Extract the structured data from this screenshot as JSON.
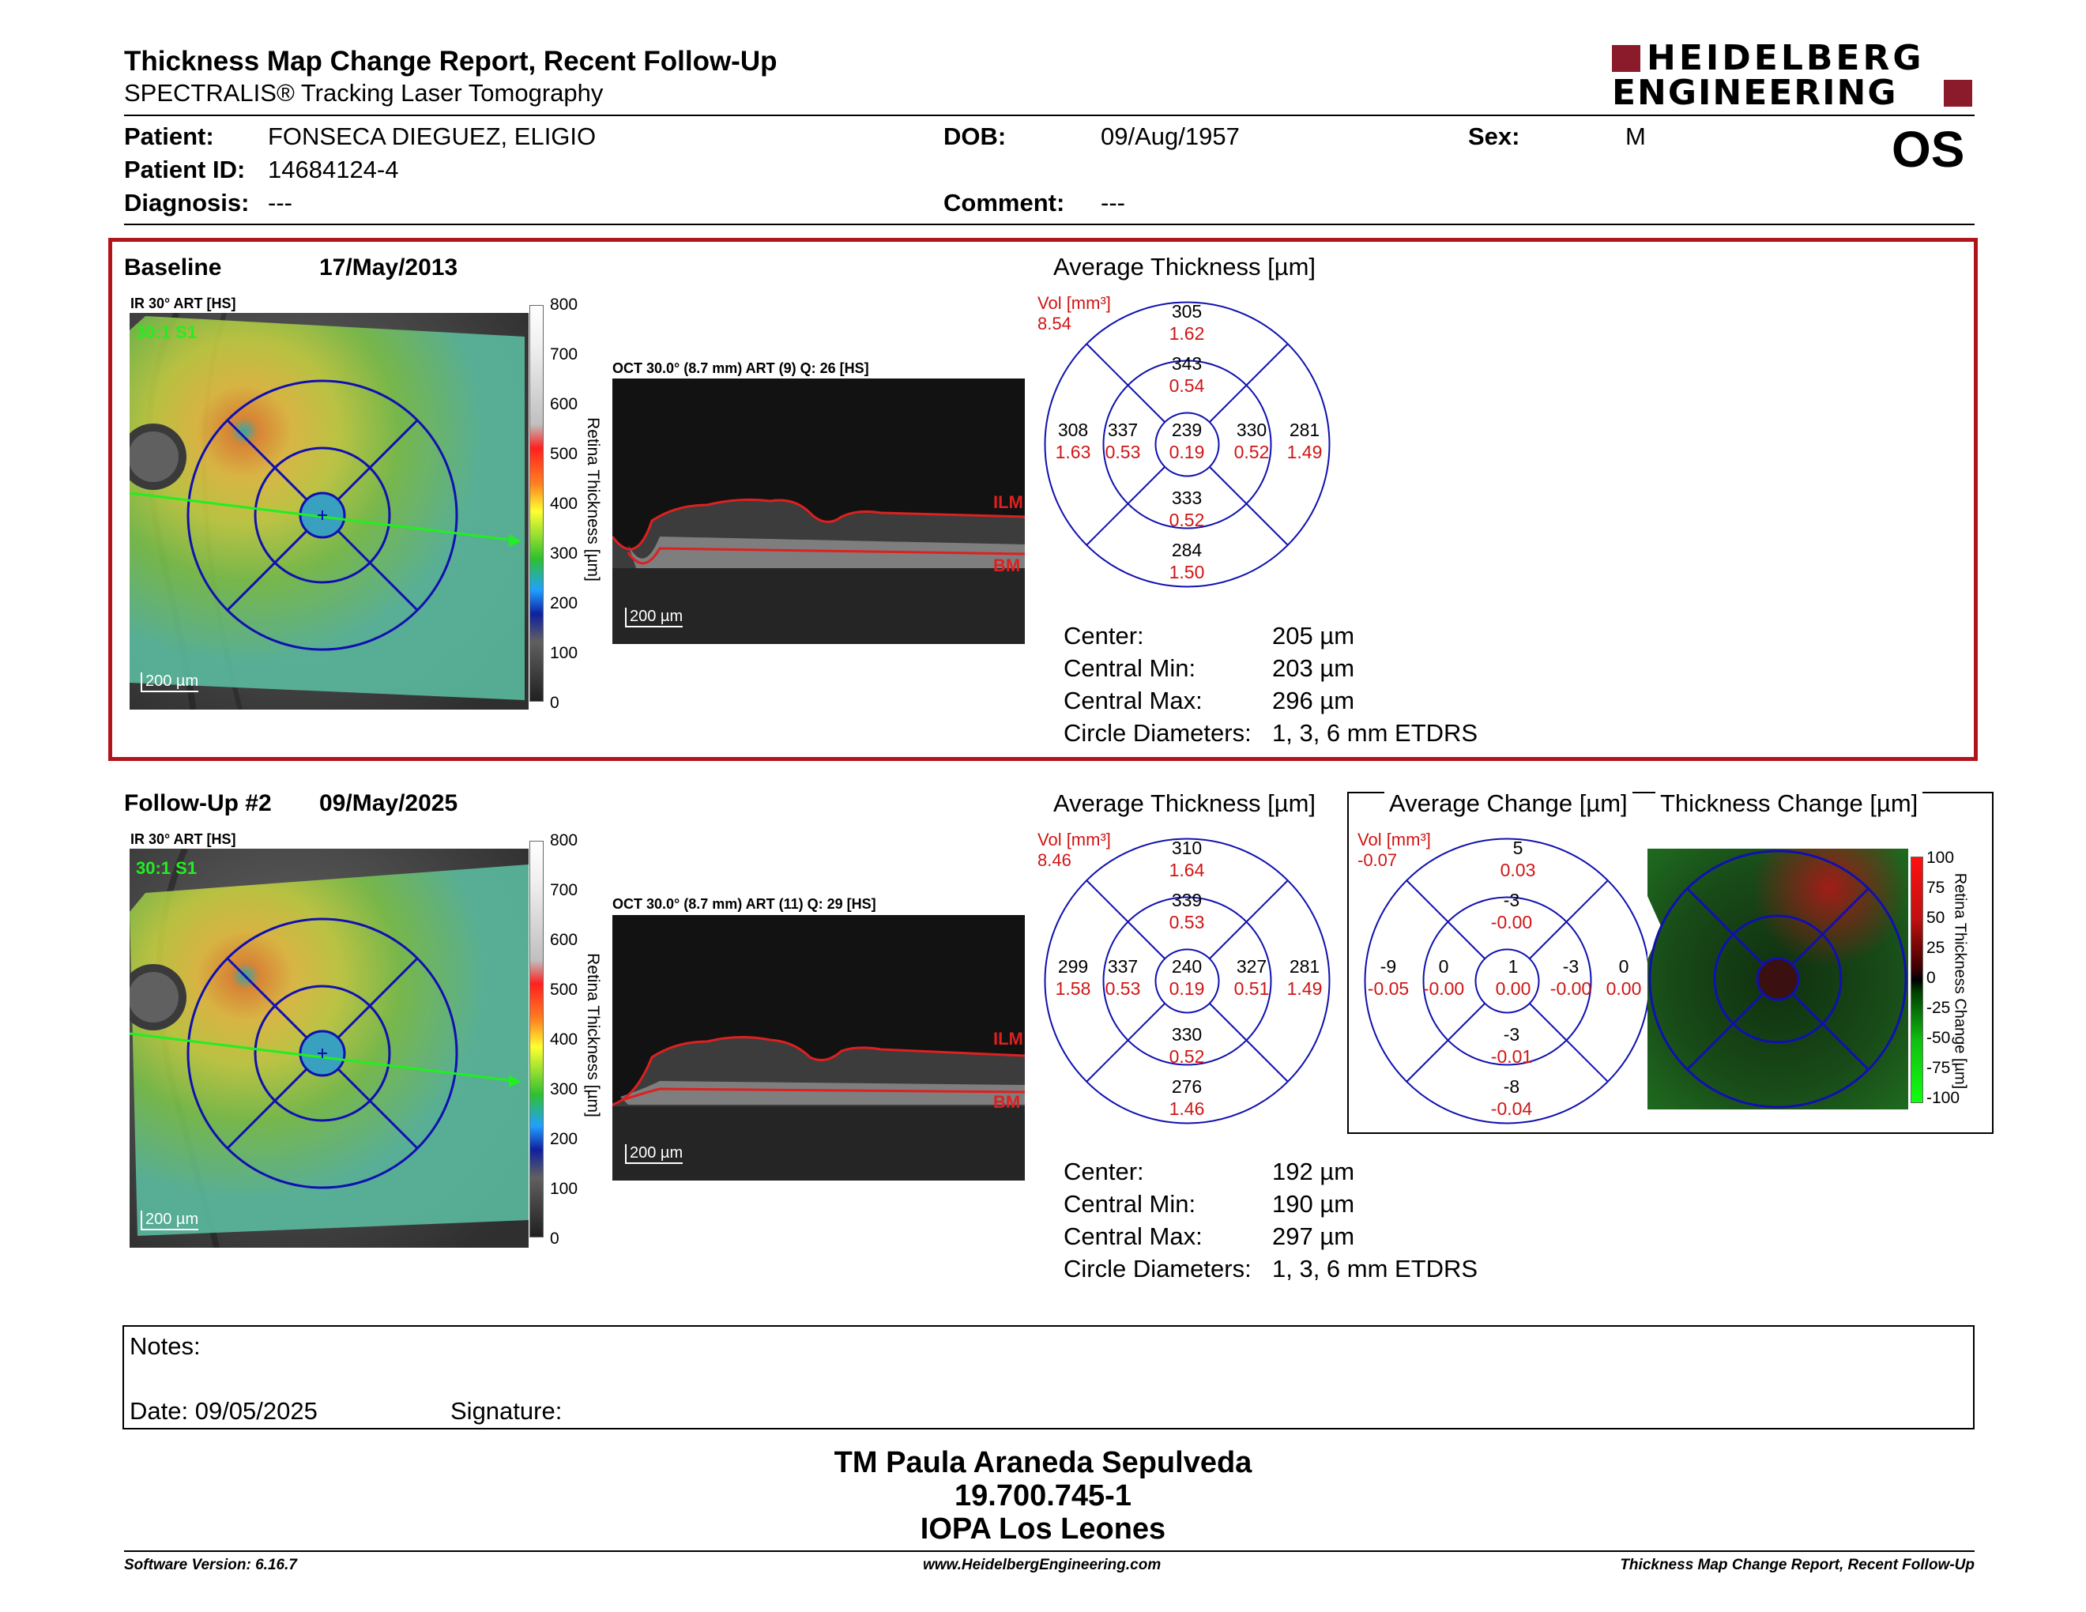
{
  "header": {
    "title": "Thickness Map Change Report, Recent Follow-Up",
    "subtitle": "SPECTRALIS® Tracking Laser Tomography",
    "brand_line1": "HEIDELBERG",
    "brand_line2": "ENGINEERING",
    "eye": "OS"
  },
  "patient": {
    "patient_label": "Patient:",
    "patient_value": "FONSECA DIEGUEZ, ELIGIO",
    "id_label": "Patient ID:",
    "id_value": "14684124-4",
    "diagnosis_label": "Diagnosis:",
    "diagnosis_value": "---",
    "dob_label": "DOB:",
    "dob_value": "09/Aug/1957",
    "comment_label": "Comment:",
    "comment_value": "---",
    "sex_label": "Sex:",
    "sex_value": "M"
  },
  "colors": {
    "frame_red": "#b0151c",
    "ring_blue": "#1010b0",
    "vol_red": "#d01515",
    "accent_green": "#22dd22"
  },
  "baseline": {
    "label": "Baseline",
    "date": "17/May/2013",
    "ir_label": "IR 30° ART [HS]",
    "ir_overlay": "30:1 S1",
    "scale": "200 µm",
    "colorbar_ticks": [
      "800",
      "700",
      "600",
      "500",
      "400",
      "300",
      "200",
      "100",
      "0"
    ],
    "colorbar_title": "Retina Thickness [µm]",
    "oct_label": "OCT 30.0° (8.7 mm) ART (9) Q: 26 [HS]",
    "oct_scale": "200 µm",
    "ilm": "ILM",
    "bm": "BM",
    "avg_title": "Average Thickness [µm]",
    "vol_label": "Vol [mm³]",
    "vol_total": "8.54",
    "etdrs": {
      "outer_sup": {
        "t": "305",
        "v": "1.62"
      },
      "inner_sup": {
        "t": "343",
        "v": "0.54"
      },
      "outer_temp": {
        "t": "308",
        "v": "1.63"
      },
      "inner_temp": {
        "t": "337",
        "v": "0.53"
      },
      "center": {
        "t": "239",
        "v": "0.19"
      },
      "inner_nas": {
        "t": "330",
        "v": "0.52"
      },
      "outer_nas": {
        "t": "281",
        "v": "1.49"
      },
      "inner_inf": {
        "t": "333",
        "v": "0.52"
      },
      "outer_inf": {
        "t": "284",
        "v": "1.50"
      }
    },
    "stats": {
      "center_l": "Center:",
      "center_v": "205 µm",
      "min_l": "Central Min:",
      "min_v": "203 µm",
      "max_l": "Central Max:",
      "max_v": "296 µm",
      "diam_l": "Circle Diameters:",
      "diam_v": "1, 3, 6 mm ETDRS"
    }
  },
  "followup": {
    "label": "Follow-Up #2",
    "date": "09/May/2025",
    "ir_label": "IR 30° ART [HS]",
    "ir_overlay": "30:1 S1",
    "scale": "200 µm",
    "colorbar_ticks": [
      "800",
      "700",
      "600",
      "500",
      "400",
      "300",
      "200",
      "100",
      "0"
    ],
    "colorbar_title": "Retina Thickness [µm]",
    "oct_label": "OCT 30.0° (8.7 mm) ART (11) Q: 29 [HS]",
    "oct_scale": "200 µm",
    "ilm": "ILM",
    "bm": "BM",
    "avg_title": "Average Thickness [µm]",
    "vol_label": "Vol [mm³]",
    "vol_total": "8.46",
    "etdrs": {
      "outer_sup": {
        "t": "310",
        "v": "1.64"
      },
      "inner_sup": {
        "t": "339",
        "v": "0.53"
      },
      "outer_temp": {
        "t": "299",
        "v": "1.58"
      },
      "inner_temp": {
        "t": "337",
        "v": "0.53"
      },
      "center": {
        "t": "240",
        "v": "0.19"
      },
      "inner_nas": {
        "t": "327",
        "v": "0.51"
      },
      "outer_nas": {
        "t": "281",
        "v": "1.49"
      },
      "inner_inf": {
        "t": "330",
        "v": "0.52"
      },
      "outer_inf": {
        "t": "276",
        "v": "1.46"
      }
    },
    "stats": {
      "center_l": "Center:",
      "center_v": "192 µm",
      "min_l": "Central Min:",
      "min_v": "190 µm",
      "max_l": "Central Max:",
      "max_v": "297 µm",
      "diam_l": "Circle Diameters:",
      "diam_v": "1, 3, 6 mm ETDRS"
    }
  },
  "change": {
    "avg_title": "Average Change [µm]",
    "vol_label": "Vol [mm³]",
    "vol_total": "-0.07",
    "etdrs": {
      "outer_sup": {
        "t": "5",
        "v": "0.03"
      },
      "inner_sup": {
        "t": "-3",
        "v": "-0.00"
      },
      "outer_temp": {
        "t": "-9",
        "v": "-0.05"
      },
      "inner_temp": {
        "t": "0",
        "v": "-0.00"
      },
      "center": {
        "t": "1",
        "v": "0.00"
      },
      "inner_nas": {
        "t": "-3",
        "v": "-0.00"
      },
      "outer_nas": {
        "t": "0",
        "v": "0.00"
      },
      "inner_inf": {
        "t": "-3",
        "v": "-0.01"
      },
      "outer_inf": {
        "t": "-8",
        "v": "-0.04"
      }
    },
    "map_title": "Thickness Change [µm]",
    "colorbar_ticks": [
      "100",
      "75",
      "50",
      "25",
      "0",
      "-25",
      "-50",
      "-75",
      "-100"
    ],
    "colorbar_title": "Retina Thickness Change [µm]"
  },
  "notes": {
    "label": "Notes:",
    "date_label": "Date: 09/05/2025",
    "signature_label": "Signature:"
  },
  "signatory": {
    "name": "TM Paula Araneda Sepulveda",
    "id": "19.700.745-1",
    "org": "IOPA Los Leones"
  },
  "footer": {
    "left": "Software Version: 6.16.7",
    "center": "www.HeidelbergEngineering.com",
    "right": "Thickness Map Change Report, Recent Follow-Up"
  }
}
